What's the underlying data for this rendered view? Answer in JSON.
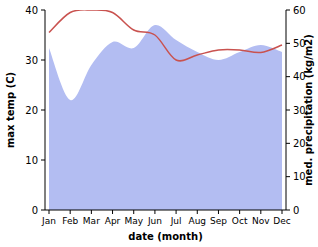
{
  "chart_data": {
    "type": "line",
    "categories": [
      "Jan",
      "Feb",
      "Mar",
      "Apr",
      "May",
      "Jun",
      "Jul",
      "Aug",
      "Sep",
      "Oct",
      "Nov",
      "Dec"
    ],
    "x_label": "date (month)",
    "y_label": "max temp (C)",
    "y2_label": "med. precipitation (kg/m2)",
    "ylim": [
      0,
      40
    ],
    "yticks": [
      0,
      10,
      20,
      30,
      40
    ],
    "y2lim": [
      0,
      60
    ],
    "y2ticks": [
      0,
      10,
      20,
      30,
      40,
      50,
      60
    ],
    "grid": false,
    "series": [
      {
        "name": "med. precipitation",
        "type": "area",
        "axis": "y2",
        "color": "#b3bdf2",
        "values": [
          48.6,
          33,
          43.5,
          50.4,
          48.6,
          55.5,
          51,
          47.4,
          45,
          47.4,
          49.5,
          47.4
        ]
      },
      {
        "name": "max temp",
        "type": "line",
        "color": "#c9524f",
        "values": [
          35.5,
          39.5,
          40,
          39.5,
          36,
          35,
          30,
          31,
          32,
          32,
          31.5,
          33
        ]
      }
    ]
  }
}
